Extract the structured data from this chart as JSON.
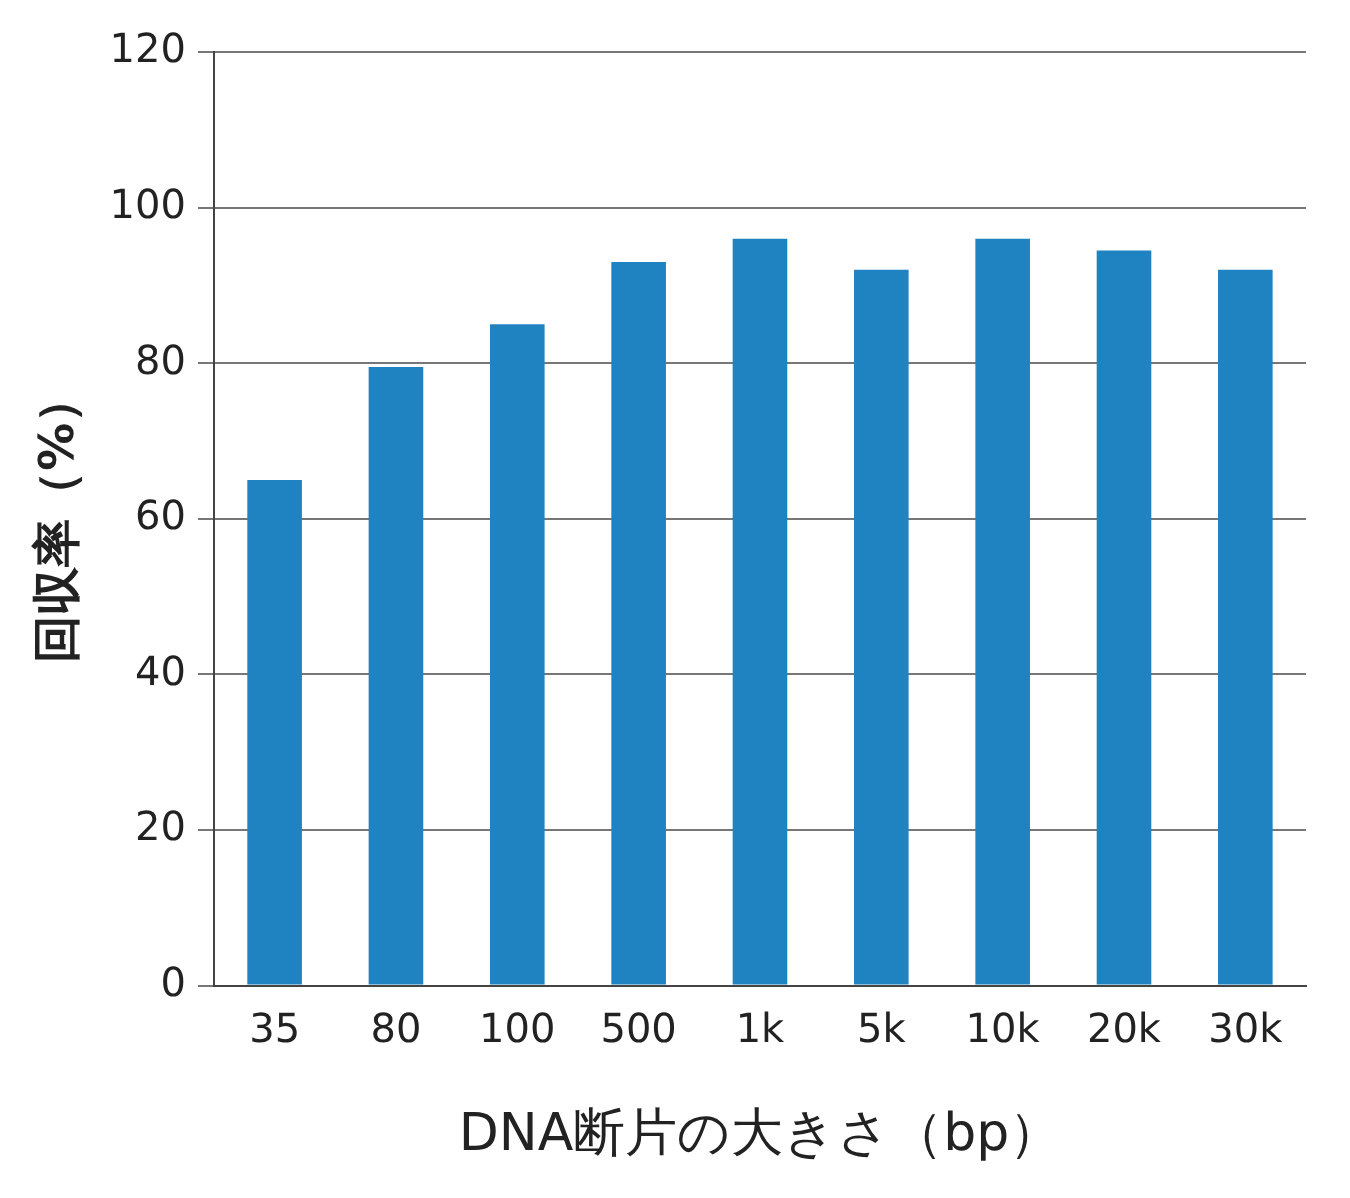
{
  "chart_data": {
    "type": "bar",
    "xlabel": "DNA断片の大きさ（bp）",
    "ylabel": "回収率（%）",
    "categories": [
      "35",
      "80",
      "100",
      "500",
      "1k",
      "5k",
      "10k",
      "20k",
      "30k"
    ],
    "values": [
      65,
      79.5,
      85,
      93,
      96,
      92,
      96,
      94.5,
      92
    ],
    "color": "#1f83c1",
    "ylim": [
      0,
      120
    ],
    "yticks": [
      0,
      20,
      40,
      60,
      80,
      100,
      120
    ],
    "grid": "y",
    "legend": false
  }
}
